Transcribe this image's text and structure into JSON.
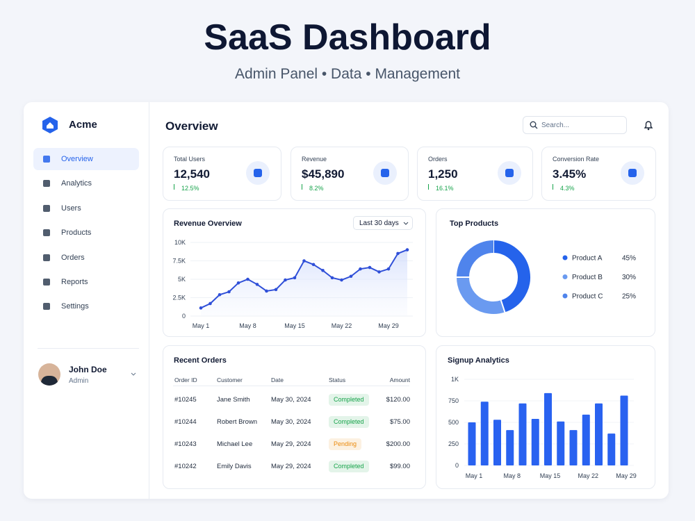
{
  "header": {
    "title": "SaaS Dashboard",
    "subtitle": "Admin Panel • Data • Management"
  },
  "sidebar": {
    "brand": "Acme",
    "nav": [
      "Overview",
      "Analytics",
      "Users",
      "Products",
      "Orders",
      "Reports",
      "Settings"
    ],
    "user": {
      "name": "John Doe",
      "role": "Admin"
    }
  },
  "topbar": {
    "title": "Overview",
    "search_placeholder": "Search..."
  },
  "stats": [
    {
      "label": "Total Users",
      "value": "12,540",
      "change": "12.5%"
    },
    {
      "label": "Revenue",
      "value": "$45,890",
      "change": "8.2%"
    },
    {
      "label": "Orders",
      "value": "1,250",
      "change": "16.1%"
    },
    {
      "label": "Conversion Rate",
      "value": "3.45%",
      "change": "4.3%"
    }
  ],
  "revenue": {
    "title": "Revenue Overview",
    "range": "Last 30 days",
    "chart_data": {
      "type": "line",
      "color": "#2f4fd8",
      "grid": true,
      "categories": [
        "May 1",
        null,
        null,
        null,
        null,
        "May 8",
        null,
        null,
        null,
        null,
        "May 15",
        null,
        null,
        null,
        null,
        "May 22",
        null,
        null,
        null,
        null,
        "May 29",
        null,
        null
      ],
      "values": [
        1100,
        1700,
        2900,
        3300,
        4500,
        5000,
        4300,
        3400,
        3600,
        4900,
        5200,
        7500,
        7000,
        6200,
        5200,
        4900,
        5400,
        6400,
        6600,
        6000,
        6400,
        8500,
        9000
      ],
      "ylim": [
        0,
        10000
      ],
      "yticks": [
        0,
        {
          "value": 2500,
          "label": "2.5K"
        },
        {
          "value": 5000,
          "label": "5K"
        },
        {
          "value": 7500,
          "label": "7.5K"
        },
        {
          "value": 10000,
          "label": "10K"
        }
      ]
    }
  },
  "top_products": {
    "title": "Top Products",
    "chart_data": {
      "type": "pie",
      "categories": [
        "Product A",
        "Product B",
        "Product C"
      ],
      "values": [
        45,
        30,
        25
      ],
      "value_labels": [
        "45%",
        "30%",
        "25%"
      ],
      "colors": [
        "#2563eb",
        "#6a9af0",
        "#4f84ec"
      ]
    }
  },
  "orders": {
    "title": "Recent Orders",
    "columns": [
      "Order ID",
      "Customer",
      "Date",
      "Status",
      "Amount"
    ],
    "rows": [
      {
        "id": "#10245",
        "customer": "Jane Smith",
        "date": "May 30, 2024",
        "status": "Completed",
        "status_color": "#16a34a",
        "amount": "$120.00"
      },
      {
        "id": "#10244",
        "customer": "Robert Brown",
        "date": "May 30, 2024",
        "status": "Completed",
        "status_color": "#16a34a",
        "amount": "$75.00"
      },
      {
        "id": "#10243",
        "customer": "Michael Lee",
        "date": "May 29, 2024",
        "status": "Pending",
        "status_color": "#ea8a0c",
        "amount": "$200.00"
      },
      {
        "id": "#10242",
        "customer": "Emily Davis",
        "date": "May 29, 2024",
        "status": "Completed",
        "status_color": "#16a34a",
        "amount": "$99.00"
      }
    ]
  },
  "signups": {
    "title": "Signup Analytics",
    "chart_data": {
      "type": "bar",
      "color": "#2962f0",
      "grid": true,
      "categories": [
        "May 1",
        null,
        null,
        "May 8",
        null,
        null,
        "May 15",
        null,
        null,
        "May 22",
        null,
        null,
        "May 29"
      ],
      "values": [
        500,
        740,
        530,
        410,
        720,
        540,
        840,
        510,
        410,
        590,
        720,
        370,
        810
      ],
      "ylim": [
        0,
        1000
      ],
      "yticks": [
        0,
        250,
        500,
        750,
        {
          "value": 1000,
          "label": "1K"
        }
      ]
    }
  }
}
